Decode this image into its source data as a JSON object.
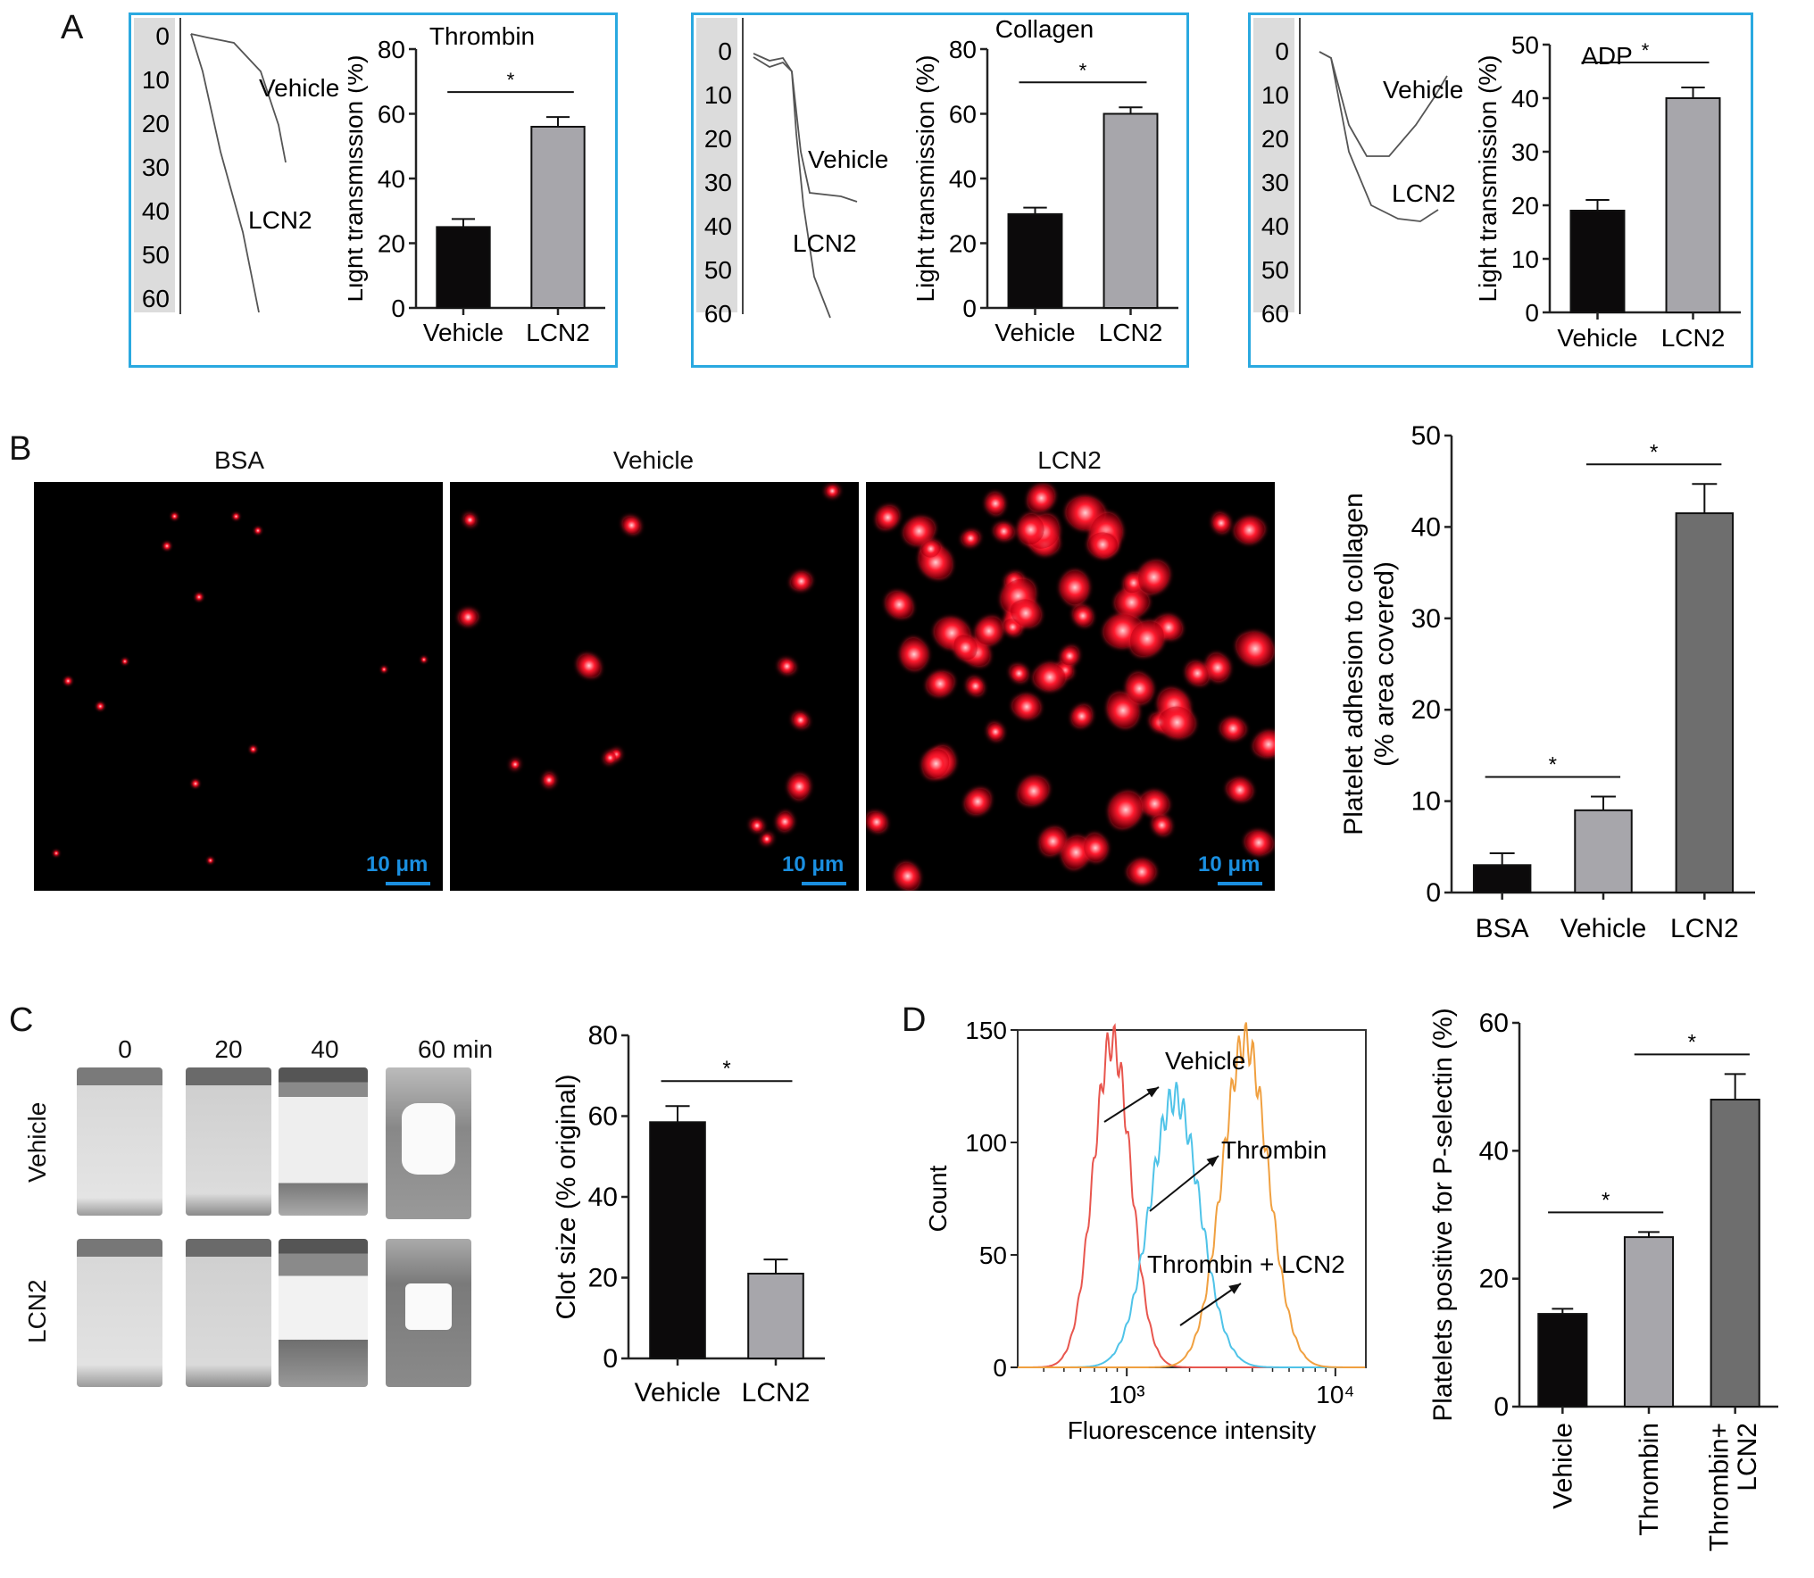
{
  "panels": {
    "A": {
      "label": "A"
    },
    "B": {
      "label": "B",
      "image_labels": [
        "BSA",
        "Vehicle",
        "LCN2"
      ],
      "scale_bar": "10 μm"
    },
    "C": {
      "label": "C",
      "time_labels": [
        "0",
        "20",
        "40",
        "60 min"
      ],
      "row_labels": [
        "Vehicle",
        "LCN2"
      ]
    },
    "D": {
      "label": "D"
    }
  },
  "traces": [
    {
      "ticks": [
        "0",
        "10",
        "20",
        "30",
        "40",
        "50",
        "60"
      ],
      "label_vehicle": "Vehicle",
      "label_lcn2": "LCN2"
    },
    {
      "ticks": [
        "0",
        "10",
        "20",
        "30",
        "40",
        "50",
        "60"
      ],
      "label_vehicle": "Vehicle",
      "label_lcn2": "LCN2"
    },
    {
      "ticks": [
        "0",
        "10",
        "20",
        "30",
        "40",
        "50",
        "60"
      ],
      "label_vehicle": "Vehicle",
      "label_lcn2": "LCN2"
    }
  ],
  "colors": {
    "frame": "#2aa9e0",
    "vehicle_bar": "#0c0a0b",
    "lcn2_bar": "#a7a6ab",
    "dark_gray_bar": "#6e6e6e",
    "platelet_red": "#ff1a2e",
    "hist_vehicle": "#e8564e",
    "hist_thrombin": "#4fc3e8",
    "hist_thrombin_lcn2": "#f0a040",
    "scale_bar": "#1a8fe0"
  },
  "chart_data": [
    {
      "type": "bar",
      "title": "Thrombin",
      "ylabel": "Light transmission (%)",
      "categories": [
        "Vehicle",
        "LCN2"
      ],
      "values": [
        25,
        56
      ],
      "errors": [
        2.5,
        3
      ],
      "ylim": [
        0,
        80
      ],
      "yticks": [
        "0",
        "20",
        "40",
        "60",
        "80"
      ],
      "significance": "*"
    },
    {
      "type": "bar",
      "title": "Collagen",
      "ylabel": "Light transmission (%)",
      "categories": [
        "Vehicle",
        "LCN2"
      ],
      "values": [
        29,
        60
      ],
      "errors": [
        2,
        2
      ],
      "ylim": [
        0,
        80
      ],
      "yticks": [
        "0",
        "20",
        "40",
        "60",
        "80"
      ],
      "significance": "*"
    },
    {
      "type": "bar",
      "title": "ADP",
      "ylabel": "Light transmission (%)",
      "categories": [
        "Vehicle",
        "LCN2"
      ],
      "values": [
        19,
        40
      ],
      "errors": [
        2,
        2
      ],
      "ylim": [
        0,
        50
      ],
      "yticks": [
        "0",
        "10",
        "20",
        "30",
        "40",
        "50"
      ],
      "significance": "*"
    },
    {
      "type": "bar",
      "ylabel": "Platelet adhesion to collagen (% area covered)",
      "categories": [
        "BSA",
        "Vehicle",
        "LCN2"
      ],
      "values": [
        3,
        9,
        41.5
      ],
      "errors": [
        1.3,
        1.5,
        3.2
      ],
      "ylim": [
        0,
        50
      ],
      "yticks": [
        "0",
        "10",
        "20",
        "30",
        "40",
        "50"
      ],
      "significance": [
        "*",
        "*"
      ]
    },
    {
      "type": "bar",
      "ylabel": "Clot size (% original)",
      "categories": [
        "Vehicle",
        "LCN2"
      ],
      "values": [
        58.5,
        21
      ],
      "errors": [
        4,
        3.5
      ],
      "ylim": [
        0,
        80
      ],
      "yticks": [
        "0",
        "20",
        "40",
        "60",
        "80"
      ],
      "significance": "*"
    },
    {
      "type": "line",
      "xlabel": "Fluorescence intensity",
      "ylabel": "Count",
      "x_scale": "log",
      "xticks": [
        "10³",
        "10⁴"
      ],
      "ylim": [
        0,
        150
      ],
      "yticks": [
        "0",
        "50",
        "100",
        "150"
      ],
      "series": [
        {
          "name": "Vehicle",
          "peak_x": 850,
          "peak_count": 145
        },
        {
          "name": "Thrombin",
          "peak_x": 1700,
          "peak_count": 120
        },
        {
          "name": "Thrombin + LCN2",
          "peak_x": 3700,
          "peak_count": 145
        }
      ]
    },
    {
      "type": "bar",
      "ylabel": "Platelets positive for P-selectin (%)",
      "categories": [
        "Vehicle",
        "Thrombin",
        "Thrombin+ LCN2"
      ],
      "values": [
        14.5,
        26.5,
        48
      ],
      "errors": [
        0.8,
        0.8,
        4
      ],
      "ylim": [
        0,
        60
      ],
      "yticks": [
        "0",
        "20",
        "40",
        "60"
      ],
      "significance": [
        "*",
        "*"
      ]
    }
  ]
}
